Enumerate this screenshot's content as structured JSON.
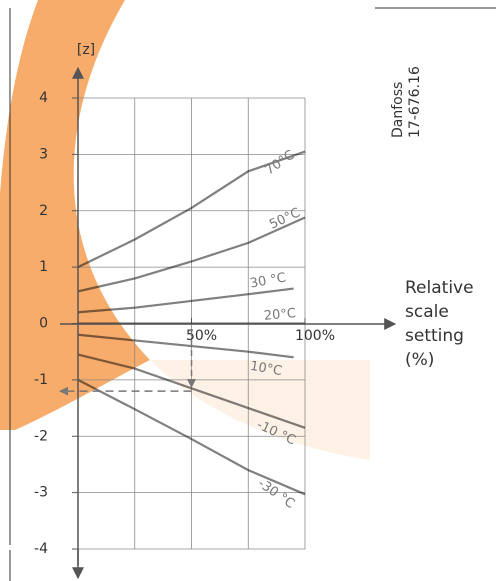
{
  "chart_data": {
    "type": "line",
    "y_label": "[z]",
    "x_label_lines": [
      "Relative",
      "scale",
      "setting",
      "(%)"
    ],
    "annotations": [
      "Danfoss",
      "17-676.16"
    ],
    "xlim": [
      0,
      100
    ],
    "ylim": [
      -4,
      4
    ],
    "yticks": [
      4,
      3,
      2,
      1,
      0,
      -1,
      -2,
      -3,
      -4
    ],
    "xticks": [
      {
        "value": 50,
        "label": "50%"
      },
      {
        "value": 100,
        "label": "100%"
      }
    ],
    "xgrid": [
      0,
      25,
      50,
      75,
      100
    ],
    "grid": true,
    "series": [
      {
        "name": "70°C",
        "color": "#808080",
        "x": [
          0,
          25,
          50,
          75,
          100
        ],
        "values": [
          1.0,
          1.49,
          2.05,
          2.7,
          3.05
        ]
      },
      {
        "name": "50°C",
        "color": "#808080",
        "x": [
          0,
          25,
          50,
          75,
          100
        ],
        "values": [
          0.57,
          0.8,
          1.1,
          1.43,
          1.88
        ]
      },
      {
        "name": "30 °C",
        "color": "#808080",
        "x": [
          0,
          25,
          50,
          75,
          95
        ],
        "values": [
          0.2,
          0.28,
          0.4,
          0.52,
          0.62
        ]
      },
      {
        "name": "20°C",
        "color": "#808080",
        "x": [
          0,
          100
        ],
        "values": [
          0,
          0
        ]
      },
      {
        "name": "10°C",
        "color": "#808080",
        "x": [
          0,
          25,
          50,
          75,
          95
        ],
        "values": [
          -0.2,
          -0.3,
          -0.4,
          -0.5,
          -0.6
        ]
      },
      {
        "name": "-10 °C",
        "color": "#808080",
        "x": [
          0,
          25,
          50,
          75,
          100
        ],
        "values": [
          -0.55,
          -0.8,
          -1.15,
          -1.5,
          -1.85
        ]
      },
      {
        "name": "-30 °C",
        "color": "#808080",
        "x": [
          0,
          25,
          50,
          75,
          100
        ],
        "values": [
          -1.0,
          -1.52,
          -2.05,
          -2.6,
          -3.03
        ]
      }
    ],
    "reading": {
      "x": 50,
      "z": -1.2
    }
  }
}
